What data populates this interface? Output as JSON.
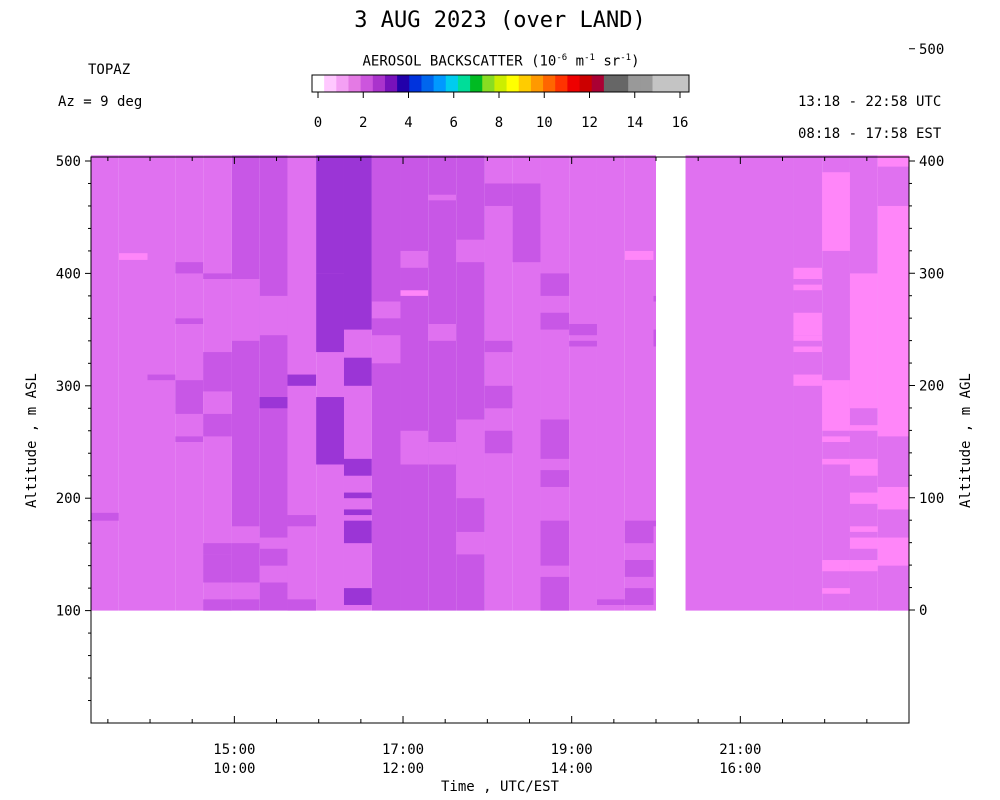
{
  "header": {
    "title": "3 AUG 2023 (over LAND)",
    "instrument": "TOPAZ",
    "azimuth": "Az =   9 deg",
    "utc_range": "13:18 - 22:58 UTC",
    "est_range": "08:18 - 17:58 EST"
  },
  "colorbar": {
    "title_prefix": "AEROSOL BACKSCATTER (10",
    "title_exp1": "-6",
    "title_mid1": " m",
    "title_exp2": "-1",
    "title_mid2": " sr",
    "title_exp3": "-1",
    "title_suffix": ")",
    "ticks": [
      "0",
      "2",
      "4",
      "6",
      "8",
      "10",
      "12",
      "14",
      "16"
    ],
    "colors": [
      "#ffffff",
      "#ffc8ff",
      "#f4a0f4",
      "#e47ae4",
      "#cc55dd",
      "#aa33cc",
      "#7711bb",
      "#2200aa",
      "#0033dd",
      "#0066ee",
      "#0099ff",
      "#00ccee",
      "#00dd99",
      "#00bb22",
      "#88dd22",
      "#ccee00",
      "#ffff00",
      "#ffcc00",
      "#ff9900",
      "#ff6600",
      "#ff3300",
      "#ee0000",
      "#cc0000",
      "#aa0033",
      "#666666",
      "#666666",
      "#999999",
      "#999999",
      "#c4c4c4",
      "#c4c4c4",
      "#c4c4c4"
    ]
  },
  "chart_data": {
    "type": "heatmap",
    "title": "3 AUG 2023 (over LAND)",
    "xlabel": "Time , UTC/EST",
    "ylabel_left": "Altitude , m ASL",
    "ylabel_right": "Altitude , m AGL",
    "x_ticks_utc": [
      "15:00",
      "17:00",
      "19:00",
      "21:00"
    ],
    "x_ticks_est": [
      "10:00",
      "12:00",
      "14:00",
      "16:00"
    ],
    "y_ticks_left": [
      "100",
      "200",
      "300",
      "400",
      "500"
    ],
    "y_ticks_right": [
      "0",
      "100",
      "200",
      "300",
      "400",
      "500"
    ],
    "x_range_utc_hours": [
      13.3,
      23.0
    ],
    "y_range_m_asl": [
      0,
      505
    ],
    "data_bottom_m_asl": 100,
    "missing_data_utc_hours": [
      20.0,
      20.35
    ],
    "color_scale": "aerosol backscatter 0-16 (10^-6 m^-1 sr^-1)",
    "colors": {
      "1.2": "#e071f0",
      "1.6": "#c857e6",
      "2.0": "#b84ee0",
      "2.3": "#9b35d6",
      "0.9": "#ff86f9"
    },
    "columns": [
      {
        "t": 13.3,
        "base": 1.2,
        "p": [
          [
            180,
            187,
            1.6
          ]
        ]
      },
      {
        "t": 13.63,
        "base": 1.2,
        "p": [
          [
            412,
            418,
            0.9
          ]
        ]
      },
      {
        "t": 13.97,
        "base": 1.2,
        "p": [
          [
            305,
            310,
            1.6
          ]
        ]
      },
      {
        "t": 14.3,
        "base": 1.2,
        "p": [
          [
            250,
            255,
            1.6
          ],
          [
            275,
            305,
            1.6
          ],
          [
            355,
            360,
            1.6
          ],
          [
            400,
            410,
            1.6
          ]
        ]
      },
      {
        "t": 14.63,
        "base": 1.2,
        "p": [
          [
            100,
            110,
            1.6
          ],
          [
            125,
            150,
            1.6
          ],
          [
            150,
            160,
            1.6
          ],
          [
            255,
            275,
            1.6
          ],
          [
            295,
            330,
            1.6
          ],
          [
            395,
            400,
            1.6
          ]
        ]
      },
      {
        "t": 14.97,
        "base": 1.6,
        "p": [
          [
            160,
            175,
            1.2
          ],
          [
            110,
            125,
            1.2
          ],
          [
            340,
            395,
            1.2
          ]
        ]
      },
      {
        "t": 15.3,
        "base": 1.6,
        "p": [
          [
            125,
            140,
            1.2
          ],
          [
            155,
            165,
            1.2
          ],
          [
            280,
            290,
            2.3
          ],
          [
            345,
            380,
            2.0
          ]
        ]
      },
      {
        "t": 15.63,
        "base": 2.0,
        "p": [
          [
            100,
            110,
            1.6
          ],
          [
            175,
            185,
            1.6
          ],
          [
            300,
            310,
            2.3
          ]
        ]
      },
      {
        "t": 15.97,
        "base": 2.0,
        "p": [
          [
            230,
            290,
            2.3
          ],
          [
            330,
            400,
            2.3
          ],
          [
            400,
            505,
            2.3
          ]
        ]
      },
      {
        "t": 16.3,
        "base": 2.0,
        "p": [
          [
            105,
            120,
            2.3
          ],
          [
            160,
            180,
            2.3
          ],
          [
            185,
            190,
            2.3
          ],
          [
            200,
            205,
            2.3
          ],
          [
            220,
            235,
            2.3
          ],
          [
            300,
            325,
            2.3
          ],
          [
            350,
            505,
            2.3
          ]
        ]
      },
      {
        "t": 16.63,
        "base": 1.6,
        "p": [
          [
            320,
            345,
            2.0
          ],
          [
            360,
            375,
            2.0
          ]
        ]
      },
      {
        "t": 16.97,
        "base": 1.6,
        "p": [
          [
            230,
            260,
            1.2
          ],
          [
            380,
            385,
            0.9
          ],
          [
            405,
            420,
            1.2
          ]
        ]
      },
      {
        "t": 17.3,
        "base": 1.6,
        "p": [
          [
            230,
            250,
            1.2
          ],
          [
            340,
            355,
            2.0
          ],
          [
            465,
            470,
            2.0
          ]
        ]
      },
      {
        "t": 17.63,
        "base": 1.6,
        "p": [
          [
            150,
            170,
            1.2
          ],
          [
            200,
            270,
            1.2
          ],
          [
            410,
            430,
            1.2
          ]
        ]
      },
      {
        "t": 17.97,
        "base": 1.2,
        "p": [
          [
            240,
            260,
            1.6
          ],
          [
            280,
            300,
            1.6
          ],
          [
            330,
            340,
            1.6
          ],
          [
            460,
            480,
            1.6
          ]
        ]
      },
      {
        "t": 18.3,
        "base": 1.2,
        "p": [
          [
            410,
            480,
            1.6
          ]
        ]
      },
      {
        "t": 18.63,
        "base": 1.2,
        "p": [
          [
            100,
            130,
            1.6
          ],
          [
            140,
            180,
            1.6
          ],
          [
            210,
            225,
            1.6
          ],
          [
            235,
            270,
            1.6
          ],
          [
            350,
            365,
            1.6
          ],
          [
            380,
            400,
            1.6
          ]
        ]
      },
      {
        "t": 18.97,
        "base": 1.2,
        "p": [
          [
            335,
            340,
            1.6
          ],
          [
            345,
            355,
            1.6
          ]
        ]
      },
      {
        "t": 19.3,
        "base": 1.2,
        "p": [
          [
            105,
            110,
            1.6
          ]
        ]
      },
      {
        "t": 19.63,
        "base": 1.2,
        "p": [
          [
            105,
            120,
            1.6
          ],
          [
            130,
            145,
            1.6
          ],
          [
            160,
            180,
            1.6
          ],
          [
            412,
            420,
            0.9
          ]
        ]
      },
      {
        "t": 19.97,
        "base": 1.2,
        "p": [
          [
            175,
            180,
            1.6
          ],
          [
            335,
            350,
            1.6
          ],
          [
            375,
            380,
            1.6
          ]
        ]
      },
      {
        "t": 20.35,
        "base": 1.2,
        "p": []
      },
      {
        "t": 21.63,
        "base": 1.2,
        "p": [
          [
            300,
            310,
            0.9
          ],
          [
            330,
            335,
            0.9
          ],
          [
            340,
            345,
            0.9
          ],
          [
            345,
            365,
            0.9
          ],
          [
            385,
            390,
            0.9
          ],
          [
            395,
            405,
            0.9
          ]
        ]
      },
      {
        "t": 21.97,
        "base": 1.2,
        "p": [
          [
            115,
            120,
            0.9
          ],
          [
            135,
            145,
            0.9
          ],
          [
            230,
            235,
            0.9
          ],
          [
            250,
            255,
            0.9
          ],
          [
            260,
            305,
            0.9
          ],
          [
            420,
            490,
            0.9
          ]
        ]
      },
      {
        "t": 22.3,
        "base": 1.2,
        "p": [
          [
            135,
            145,
            0.9
          ],
          [
            155,
            165,
            0.9
          ],
          [
            170,
            175,
            0.9
          ],
          [
            195,
            205,
            0.9
          ],
          [
            220,
            235,
            0.9
          ],
          [
            260,
            265,
            0.9
          ],
          [
            280,
            400,
            0.9
          ]
        ]
      },
      {
        "t": 22.63,
        "base": 0.9,
        "p": [
          [
            100,
            140,
            1.2
          ],
          [
            165,
            190,
            1.2
          ],
          [
            210,
            255,
            1.2
          ],
          [
            460,
            495,
            1.2
          ]
        ]
      }
    ]
  }
}
